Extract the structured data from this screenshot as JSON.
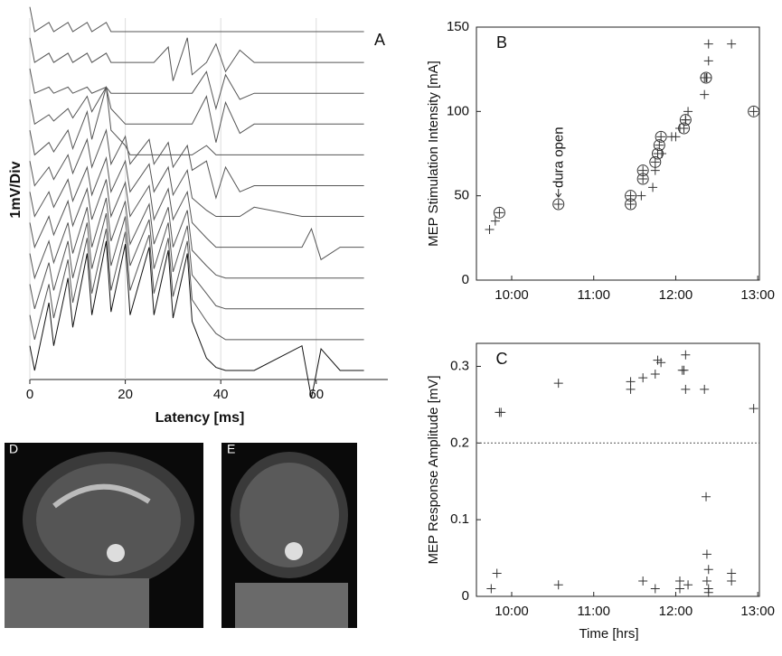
{
  "chart_data": [
    {
      "type": "line",
      "panel_label": "A",
      "xlabel": "Latency [ms]",
      "ylabel": "1mV/Div",
      "xlim": [
        0,
        75
      ],
      "xticks": [
        0,
        20,
        40,
        60
      ],
      "grid": true,
      "x": [
        0,
        1,
        4,
        5,
        8,
        9,
        12,
        13,
        16,
        17,
        20,
        21,
        25,
        26,
        29,
        30,
        33,
        34,
        37,
        39,
        41,
        44,
        47,
        57,
        59,
        61,
        65,
        70
      ],
      "series": [
        {
          "color": "#555",
          "values": [
            0.8,
            0,
            0.3,
            0,
            0.3,
            0,
            0.3,
            0,
            0.3,
            0,
            0,
            0,
            0,
            0,
            0,
            0,
            0,
            0,
            0,
            0,
            0,
            0,
            0,
            0,
            0,
            0,
            0,
            0
          ]
        },
        {
          "color": "#555",
          "values": [
            0.8,
            0,
            0.3,
            0,
            0.3,
            0,
            0.3,
            0,
            0.3,
            0,
            0,
            0,
            0,
            0,
            0.5,
            -0.6,
            0.8,
            -0.4,
            0,
            0.6,
            -0.3,
            0.4,
            0,
            0,
            0,
            0,
            0,
            0
          ]
        },
        {
          "color": "#555",
          "values": [
            0.8,
            0,
            0.2,
            0,
            0.2,
            0,
            0.2,
            0,
            0.2,
            0,
            0,
            0,
            0,
            0,
            0,
            0,
            0,
            0,
            0.7,
            -0.5,
            0.6,
            -0.2,
            0,
            0,
            0,
            0,
            0,
            0
          ]
        },
        {
          "color": "#555",
          "values": [
            0.8,
            0,
            0.3,
            0.1,
            0.5,
            0.2,
            0.9,
            0.4,
            1.2,
            0.5,
            0,
            0,
            0,
            0,
            0,
            0,
            0,
            0,
            0.9,
            -0.6,
            0.7,
            -0.3,
            0,
            0,
            0,
            0,
            0,
            0
          ]
        },
        {
          "color": "#555",
          "values": [
            0.8,
            0,
            0.4,
            0.1,
            0.8,
            0.2,
            1.4,
            0.5,
            2.2,
            0.8,
            0.3,
            0,
            0,
            0,
            0,
            0,
            0,
            0,
            0.3,
            0,
            0,
            0,
            0,
            0,
            0,
            0,
            0,
            0
          ]
        },
        {
          "color": "#555",
          "values": [
            0.8,
            0,
            0.6,
            0.2,
            1.0,
            0.4,
            1.5,
            0.6,
            1.8,
            0.7,
            1.6,
            0.7,
            1.5,
            0.7,
            1.4,
            0.6,
            1.3,
            0.5,
            0.8,
            -0.4,
            0.6,
            -0.2,
            0,
            0,
            0,
            0,
            0,
            0
          ]
        },
        {
          "color": "#555",
          "values": [
            0.8,
            0,
            0.8,
            0.3,
            1.2,
            0.5,
            1.6,
            0.7,
            1.9,
            0.8,
            1.8,
            0.8,
            1.7,
            0.8,
            1.6,
            0.7,
            1.5,
            0.6,
            0.2,
            0,
            0,
            0,
            0.3,
            0,
            0,
            0,
            0,
            0
          ]
        },
        {
          "color": "#555",
          "values": [
            0.8,
            0,
            1.0,
            0.4,
            1.5,
            0.7,
            1.9,
            0.9,
            2.2,
            1.0,
            2.1,
            1.0,
            2.0,
            0.9,
            1.9,
            0.9,
            1.8,
            0.8,
            0.3,
            0,
            0,
            0,
            0,
            0,
            0.6,
            -0.4,
            0,
            0
          ]
        },
        {
          "color": "#555",
          "values": [
            0.8,
            0,
            1.2,
            0.5,
            1.8,
            0.8,
            2.3,
            1.0,
            2.6,
            1.2,
            2.5,
            1.1,
            2.4,
            1.1,
            2.3,
            1.0,
            2.2,
            0.9,
            0.4,
            0.1,
            0,
            0,
            0,
            0,
            0,
            0,
            0,
            0
          ]
        },
        {
          "color": "#555",
          "values": [
            0.8,
            0,
            1.5,
            0.6,
            2.2,
            1.0,
            2.8,
            1.3,
            3.1,
            1.4,
            3.0,
            1.4,
            2.9,
            1.3,
            2.8,
            1.2,
            2.7,
            1.1,
            0.5,
            0.1,
            0,
            0,
            0,
            0,
            0,
            0,
            0,
            0
          ]
        },
        {
          "color": "#555",
          "values": [
            0.8,
            0,
            1.8,
            0.7,
            2.6,
            1.2,
            3.3,
            1.5,
            3.6,
            1.6,
            3.5,
            1.6,
            3.4,
            1.5,
            3.3,
            1.4,
            3.2,
            1.3,
            0.6,
            0.2,
            0,
            0,
            0,
            0,
            0,
            0,
            0,
            0
          ]
        },
        {
          "color": "#111",
          "values": [
            0.8,
            0,
            2.2,
            0.8,
            3.0,
            1.4,
            3.8,
            1.8,
            4.2,
            1.9,
            4.1,
            1.8,
            4.0,
            1.8,
            3.9,
            1.7,
            3.8,
            1.6,
            0.4,
            0.1,
            0,
            0,
            0,
            0.8,
            -0.9,
            0.7,
            0,
            0
          ]
        }
      ]
    },
    {
      "type": "scatter",
      "panel_label": "B",
      "ylabel": "MEP Stimulation Intensity [mA]",
      "annotation": "dura open",
      "xlim": [
        9.57,
        13.02
      ],
      "xticks": [
        {
          "value": 10,
          "label": "10:00"
        },
        {
          "value": 11,
          "label": "11:00"
        },
        {
          "value": 12,
          "label": "12:00"
        },
        {
          "value": 13,
          "label": "13:00"
        }
      ],
      "ylim": [
        0,
        150
      ],
      "yticks": [
        0,
        50,
        100,
        150
      ],
      "series": [
        {
          "marker": "plus",
          "color": "#333",
          "x": [
            9.73,
            9.8,
            11.58,
            11.72,
            11.75,
            11.83,
            11.95,
            12.0,
            12.05,
            12.12,
            12.15,
            12.35,
            12.35,
            12.38,
            12.4,
            12.4,
            12.68
          ],
          "values": [
            30,
            35,
            50,
            55,
            65,
            75,
            85,
            85,
            90,
            95,
            100,
            110,
            120,
            120,
            130,
            140,
            140
          ]
        },
        {
          "marker": "circled-plus",
          "color": "#333",
          "x": [
            9.85,
            10.57,
            11.45,
            11.45,
            11.6,
            11.6,
            11.75,
            11.78,
            11.8,
            11.82,
            12.1,
            12.12,
            12.37,
            12.95
          ],
          "values": [
            40,
            45,
            45,
            50,
            60,
            65,
            70,
            75,
            80,
            85,
            90,
            95,
            120,
            100
          ]
        }
      ]
    },
    {
      "type": "scatter",
      "panel_label": "C",
      "xlabel": "Time [hrs]",
      "ylabel": "MEP Response Amplitude [mV]",
      "reference_line": 0.2,
      "xlim": [
        9.57,
        13.02
      ],
      "xticks": [
        {
          "value": 10,
          "label": "10:00"
        },
        {
          "value": 11,
          "label": "11:00"
        },
        {
          "value": 12,
          "label": "12:00"
        },
        {
          "value": 13,
          "label": "13:00"
        }
      ],
      "ylim": [
        0,
        0.33
      ],
      "yticks": [
        0,
        0.1,
        0.2,
        0.3
      ],
      "series": [
        {
          "marker": "plus",
          "color": "#333",
          "x": [
            9.75,
            9.82,
            9.85,
            9.87,
            10.57,
            10.57,
            11.45,
            11.45,
            11.6,
            11.6,
            11.75,
            11.75,
            11.78,
            11.82,
            12.05,
            12.05,
            12.08,
            12.1,
            12.12,
            12.12,
            12.15,
            12.35,
            12.37,
            12.38,
            12.4,
            12.38,
            12.4,
            12.4,
            12.68,
            12.68,
            12.95
          ],
          "values": [
            0.01,
            0.03,
            0.24,
            0.24,
            0.278,
            0.015,
            0.28,
            0.27,
            0.285,
            0.02,
            0.29,
            0.01,
            0.308,
            0.305,
            0.01,
            0.02,
            0.295,
            0.295,
            0.315,
            0.27,
            0.015,
            0.27,
            0.13,
            0.055,
            0.035,
            0.02,
            0.01,
            0.005,
            0.03,
            0.02,
            0.245
          ]
        }
      ]
    }
  ],
  "images": [
    {
      "label": "D"
    },
    {
      "label": "E"
    }
  ]
}
